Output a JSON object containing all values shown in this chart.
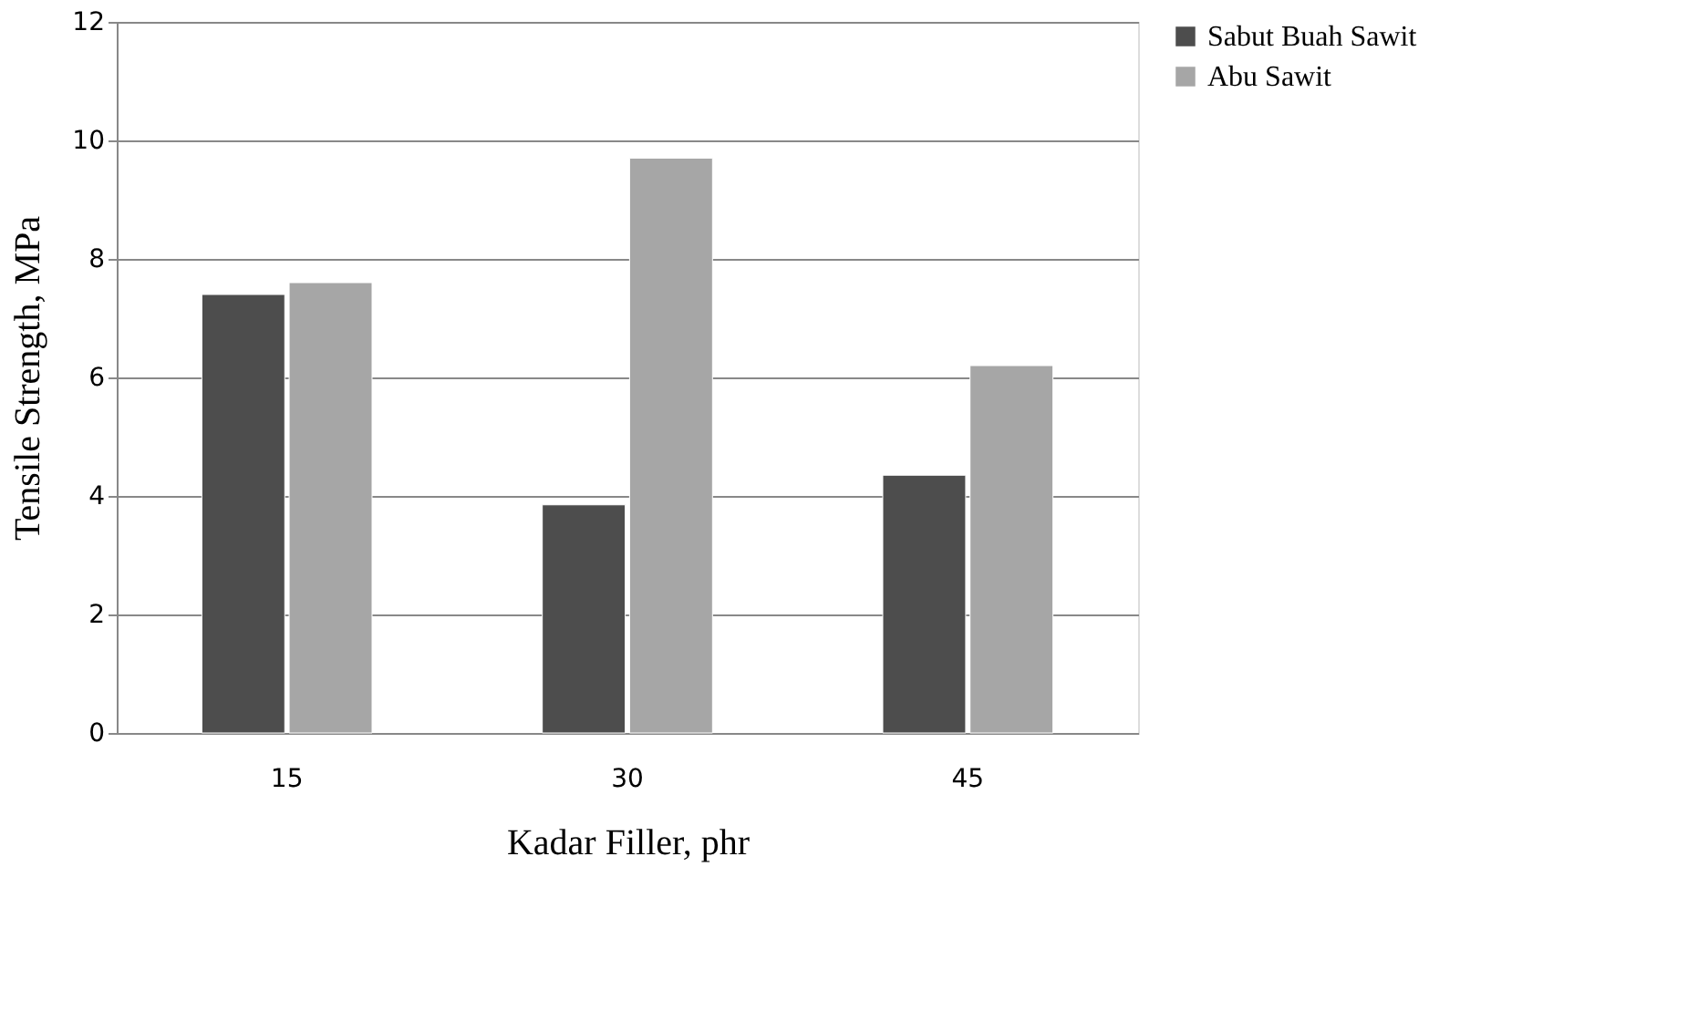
{
  "chart_data": {
    "type": "bar",
    "xlabel": "Kadar Filler, phr",
    "ylabel": "Tensile Strength, MPa",
    "categories": [
      "15",
      "30",
      "45"
    ],
    "series": [
      {
        "name": "Sabut Buah Sawit",
        "color": "#4d4d4d",
        "values": [
          7.4,
          3.85,
          4.35
        ]
      },
      {
        "name": "Abu Sawit",
        "color": "#a6a6a6",
        "values": [
          7.6,
          9.7,
          6.2
        ]
      }
    ],
    "ylim": [
      0,
      12
    ],
    "yticks": [
      0,
      2,
      4,
      6,
      8,
      10,
      12
    ],
    "grid": "y",
    "legend": "right"
  }
}
